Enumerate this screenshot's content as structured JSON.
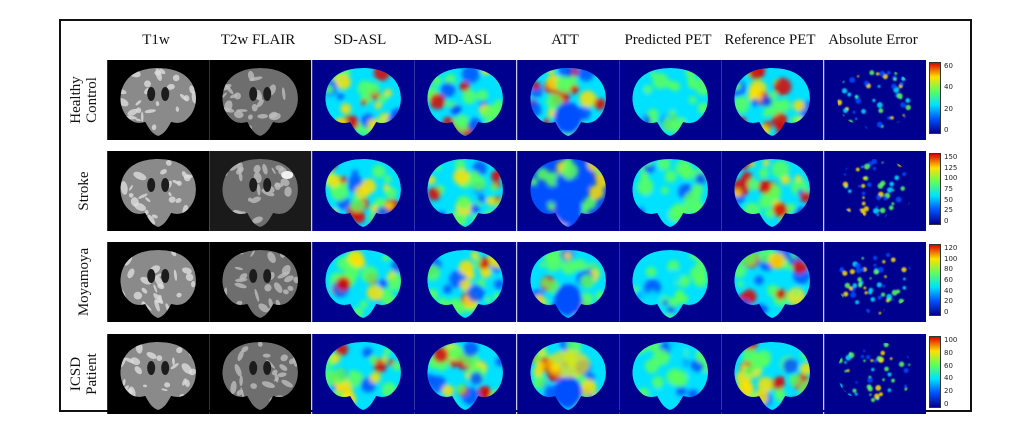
{
  "columns": [
    "T1w",
    "T2w FLAIR",
    "SD-ASL",
    "MD-ASL",
    "ATT",
    "Predicted PET",
    "Reference PET",
    "Absolute Error"
  ],
  "rows": [
    {
      "label_lines": [
        "Healthy",
        "Control"
      ],
      "colorbar_ticks": [
        "60",
        "40",
        "20",
        "0"
      ]
    },
    {
      "label_lines": [
        "Stroke"
      ],
      "colorbar_ticks": [
        "150",
        "125",
        "100",
        "75",
        "50",
        "25",
        "0"
      ]
    },
    {
      "label_lines": [
        "Moyamoya"
      ],
      "colorbar_ticks": [
        "120",
        "100",
        "80",
        "60",
        "40",
        "20",
        "0"
      ]
    },
    {
      "label_lines": [
        "ICSD",
        "Patient"
      ],
      "colorbar_ticks": [
        "100",
        "80",
        "60",
        "40",
        "20",
        "0"
      ]
    }
  ],
  "colors": {
    "jet_dark_blue": "#00008f",
    "jet_blue": "#0050ff",
    "jet_cyan": "#00e0ff",
    "jet_green": "#5cff5c",
    "jet_yellow": "#ffe000",
    "jet_red": "#e00000"
  }
}
